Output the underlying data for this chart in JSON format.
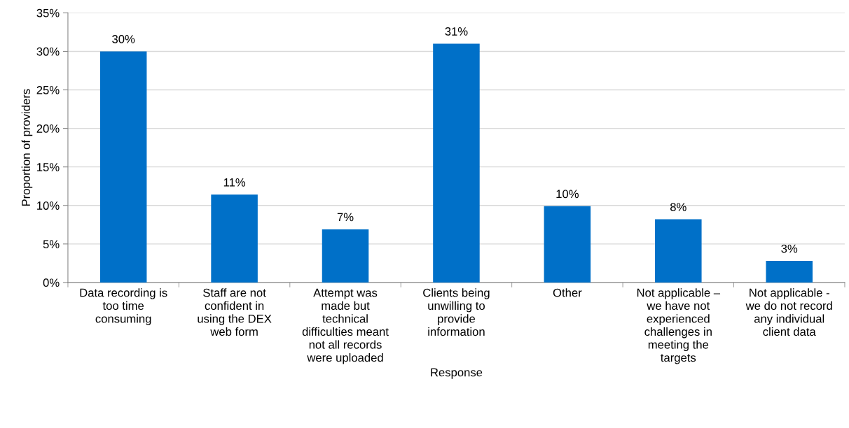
{
  "chart_data": {
    "type": "bar",
    "xlabel": "Response",
    "ylabel": "Proportion of providers",
    "categories": [
      "Data recording is\ntoo time\nconsuming",
      "Staff are not\nconfident in\nusing the DEX\nweb form",
      "Attempt was\nmade but\ntechnical\ndifficulties meant\nnot all records\nwere uploaded",
      "Clients being\nunwilling to\nprovide\ninformation",
      "Other",
      "Not applicable –\nwe have not\nexperienced\nchallenges in\nmeeting the\ntargets",
      "Not applicable -\nwe do not record\nany individual\nclient data"
    ],
    "values": [
      30,
      11.4,
      6.9,
      31,
      9.9,
      8.2,
      2.8
    ],
    "value_labels": [
      "30%",
      "11%",
      "7%",
      "31%",
      "10%",
      "8%",
      "3%"
    ],
    "color": "#0070c8",
    "ylim": [
      0,
      35
    ],
    "yticks": [
      {
        "value": 0,
        "label": "0%"
      },
      {
        "value": 5,
        "label": "5%"
      },
      {
        "value": 10,
        "label": "10%"
      },
      {
        "value": 15,
        "label": "15%"
      },
      {
        "value": 20,
        "label": "20%"
      },
      {
        "value": 25,
        "label": "25%"
      },
      {
        "value": 30,
        "label": "30%"
      },
      {
        "value": 35,
        "label": "35%"
      }
    ],
    "grid": "y",
    "legend": false
  }
}
